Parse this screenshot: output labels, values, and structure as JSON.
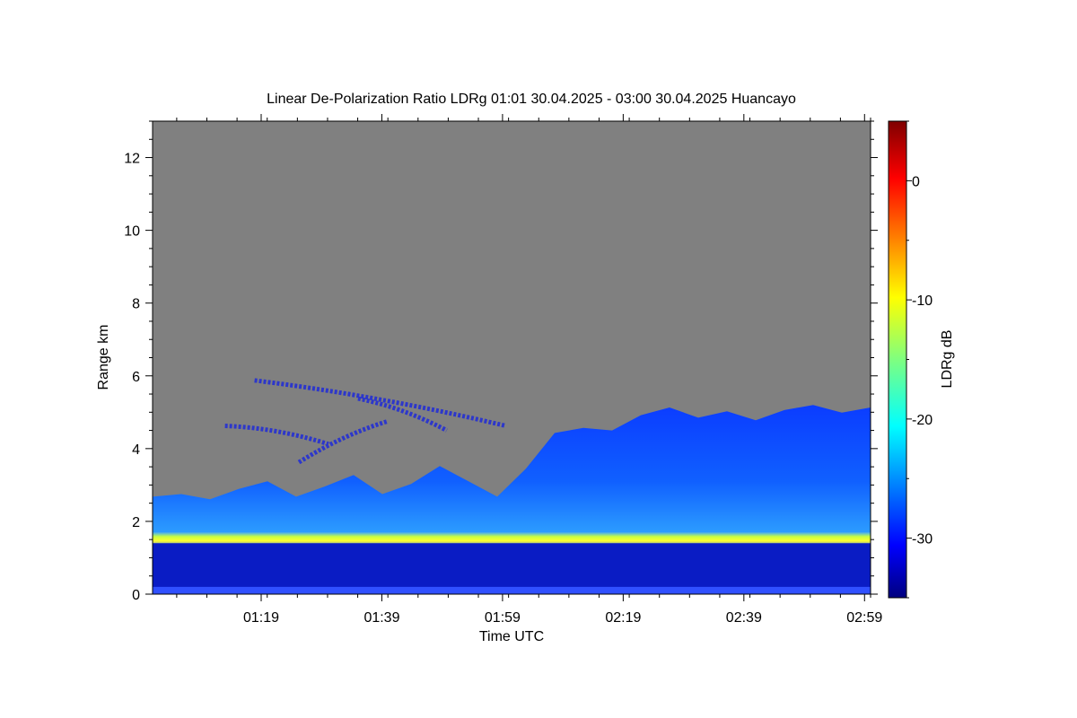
{
  "chart_data": {
    "type": "heatmap",
    "title": "Linear De-Polarization Ratio LDRg   01:01 30.04.2025 - 03:00 30.04.2025 Huancayo",
    "xlabel": "Time UTC",
    "ylabel": "Range km",
    "xlim": [
      "01:01",
      "03:00"
    ],
    "ylim": [
      0,
      13
    ],
    "x_ticks": [
      "01:19",
      "01:39",
      "01:59",
      "02:19",
      "02:39",
      "02:59"
    ],
    "y_ticks": [
      0,
      2,
      4,
      6,
      8,
      10,
      12
    ],
    "colorbar": {
      "label": "LDRg dB",
      "range": [
        -35,
        5
      ],
      "ticks": [
        0,
        -10,
        -20,
        -30
      ],
      "colormap": "jet"
    },
    "background_no_signal_color": "#808080",
    "features": [
      {
        "name": "cloud base layer",
        "start": "01:01",
        "end": "03:00",
        "range_km": [
          1.3,
          1.7
        ],
        "ldr_db": -12
      },
      {
        "name": "boundary layer",
        "start": "01:01",
        "end": "03:00",
        "range_km": [
          0,
          1.4
        ],
        "ldr_db": -33
      },
      {
        "name": "aerosol above layer",
        "start": "01:01",
        "end": "03:00",
        "range_km": [
          1.7,
          5.2
        ],
        "ldr_db": -27
      },
      {
        "name": "elevated thin layer",
        "start": "01:13",
        "end": "02:02",
        "range_km": [
          3.5,
          6.0
        ],
        "ldr_db": -31
      }
    ]
  }
}
